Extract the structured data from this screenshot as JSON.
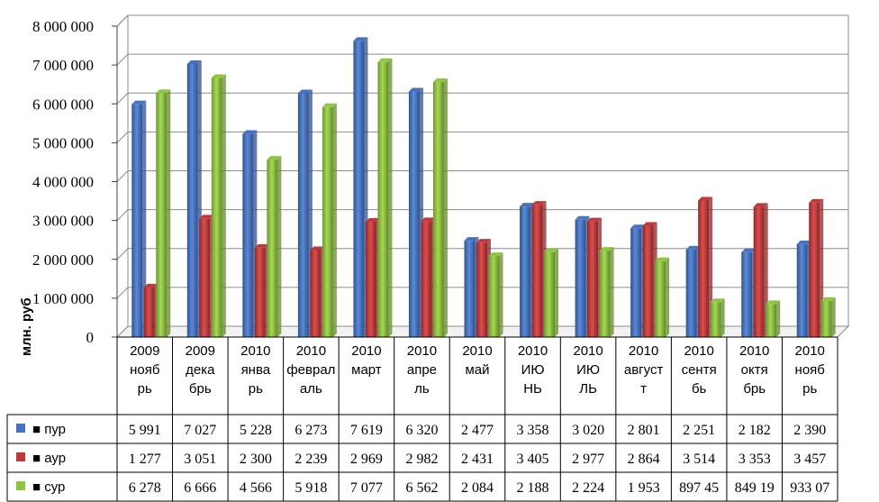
{
  "chart_data": {
    "type": "bar",
    "ylabel": "млн. руб",
    "ylim": [
      0,
      8000000
    ],
    "ytick_labels": [
      "0",
      "1 000 000",
      "2 000 000",
      "3 000 000",
      "4 000 000",
      "5 000 000",
      "6 000 000",
      "7 000 000",
      "8 000 000"
    ],
    "ytick_values": [
      0,
      1000000,
      2000000,
      3000000,
      4000000,
      5000000,
      6000000,
      7000000,
      8000000
    ],
    "grid": true,
    "legend": "table-bottom",
    "categories": [
      [
        "2009",
        "нояб",
        "рь"
      ],
      [
        "2009",
        "дека",
        "брь"
      ],
      [
        "2010",
        "янва",
        "рь"
      ],
      [
        "2010",
        "феврал",
        "аль"
      ],
      [
        "2010",
        "март"
      ],
      [
        "2010",
        "апре",
        "ль"
      ],
      [
        "2010",
        "май"
      ],
      [
        "2010",
        "ИЮ",
        "НЬ"
      ],
      [
        "2010",
        "ИЮ",
        "ЛЬ"
      ],
      [
        "2010",
        "август",
        "т"
      ],
      [
        "2010",
        "сентя",
        "бь"
      ],
      [
        "2010",
        "октя",
        "брь"
      ],
      [
        "2010",
        "нояб",
        "рь"
      ]
    ],
    "series": [
      {
        "name": "пур",
        "color": "#4472c4",
        "values": [
          5991000,
          7027000,
          5228000,
          6273000,
          7619000,
          6320000,
          2477000,
          3358000,
          3020000,
          2801000,
          2251000,
          2182000,
          2390000
        ],
        "table_values": [
          "5 991",
          "7 027",
          "5 228",
          "6 273",
          "7 619",
          "6 320",
          "2 477",
          "3 358",
          "3 020",
          "2 801",
          "2 251",
          "2 182",
          "2 390"
        ]
      },
      {
        "name": "аур",
        "color": "#c0393b",
        "values": [
          1277000,
          3051000,
          2300000,
          2239000,
          2969000,
          2982000,
          2431000,
          3405000,
          2977000,
          2864000,
          3514000,
          3353000,
          3457000
        ],
        "table_values": [
          "1 277",
          "3 051",
          "2 300",
          "2 239",
          "2 969",
          "2 982",
          "2 431",
          "3 405",
          "2 977",
          "2 864",
          "3 514",
          "3 353",
          "3 457"
        ]
      },
      {
        "name": "сур",
        "color": "#8dc63f",
        "values": [
          6278000,
          6666000,
          4566000,
          5918000,
          7077000,
          6562000,
          2084000,
          2188000,
          2224000,
          1953000,
          897450,
          849190,
          933070
        ],
        "table_values": [
          "6 278",
          "6 666",
          "4 566",
          "5 918",
          "7 077",
          "6 562",
          "2 084",
          "2 188",
          "2 224",
          "1 953",
          "897 45",
          "849 19",
          "933 07"
        ]
      }
    ]
  }
}
